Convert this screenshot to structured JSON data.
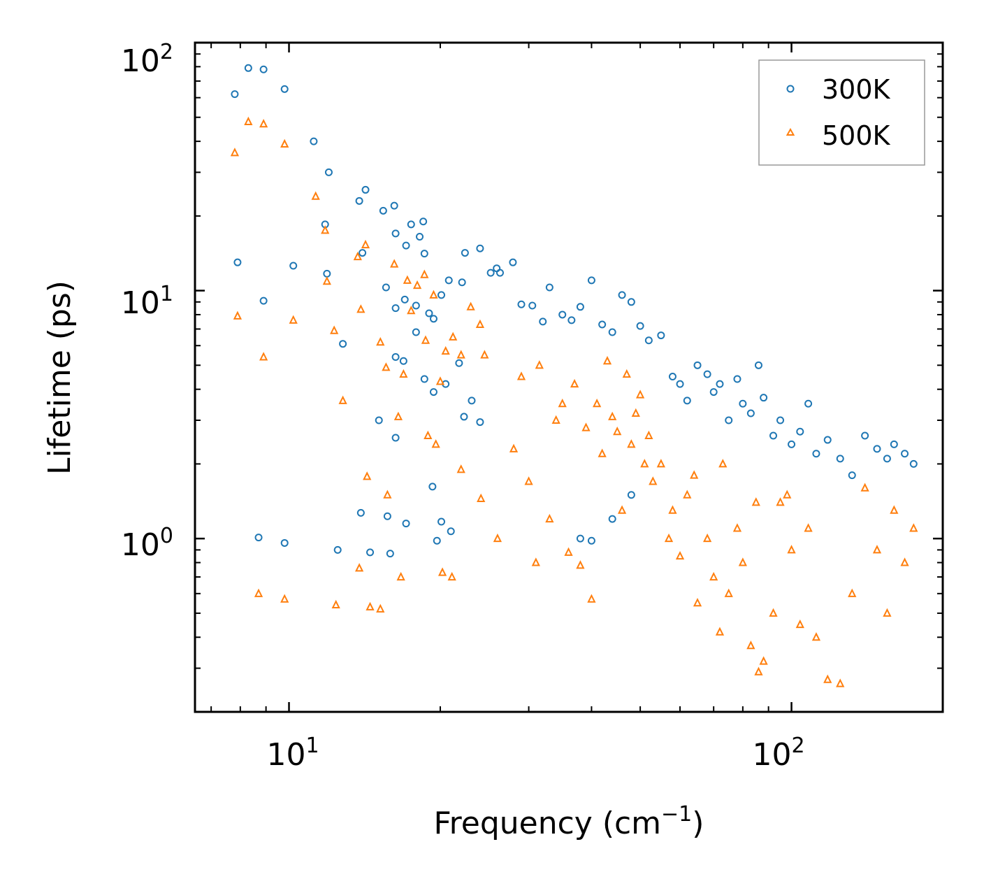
{
  "chart_data": {
    "type": "scatter",
    "xscale": "log",
    "yscale": "log",
    "xlabel": "Frequency (cm",
    "xlabel_sup": "−1",
    "xlabel_end": ")",
    "ylabel": "Lifetime (ps)",
    "xlim": [
      6.5,
      200
    ],
    "ylim": [
      0.2,
      100
    ],
    "x_ticks": [
      {
        "value": 10,
        "base": "10",
        "exp": "1"
      },
      {
        "value": 100,
        "base": "10",
        "exp": "2"
      }
    ],
    "y_ticks": [
      {
        "value": 1,
        "base": "10",
        "exp": "0"
      },
      {
        "value": 10,
        "base": "10",
        "exp": "1"
      },
      {
        "value": 100,
        "base": "10",
        "exp": "2"
      }
    ],
    "legend": {
      "position": "top-right"
    },
    "series": [
      {
        "name": "300K",
        "marker": "circle",
        "color": "#1f77b4",
        "points": [
          [
            7.8,
            62
          ],
          [
            8.3,
            79
          ],
          [
            8.9,
            78
          ],
          [
            9.8,
            65
          ],
          [
            11.2,
            40
          ],
          [
            12.0,
            30
          ],
          [
            11.8,
            18.5
          ],
          [
            7.9,
            13
          ],
          [
            8.9,
            9.1
          ],
          [
            10.2,
            12.6
          ],
          [
            11.9,
            11.7
          ],
          [
            12.8,
            6.1
          ],
          [
            13.8,
            23
          ],
          [
            14.2,
            25.5
          ],
          [
            14.0,
            14.2
          ],
          [
            15.4,
            21
          ],
          [
            16.2,
            22
          ],
          [
            16.3,
            17
          ],
          [
            17.5,
            18.5
          ],
          [
            18.5,
            19
          ],
          [
            18.2,
            16.5
          ],
          [
            17.1,
            15.2
          ],
          [
            18.6,
            14.1
          ],
          [
            15.6,
            10.3
          ],
          [
            16.3,
            8.5
          ],
          [
            17.0,
            9.2
          ],
          [
            17.9,
            8.7
          ],
          [
            19.0,
            8.1
          ],
          [
            19.4,
            7.7
          ],
          [
            20.1,
            9.6
          ],
          [
            20.8,
            11
          ],
          [
            22.1,
            10.8
          ],
          [
            22.4,
            14.2
          ],
          [
            24.0,
            14.8
          ],
          [
            25.2,
            11.8
          ],
          [
            25.9,
            12.3
          ],
          [
            26.3,
            11.8
          ],
          [
            27.9,
            13.0
          ],
          [
            16.3,
            5.4
          ],
          [
            16.9,
            5.2
          ],
          [
            17.9,
            6.8
          ],
          [
            18.6,
            4.4
          ],
          [
            19.4,
            3.9
          ],
          [
            20.5,
            4.2
          ],
          [
            21.8,
            5.1
          ],
          [
            23.1,
            3.6
          ],
          [
            24.0,
            2.95
          ],
          [
            22.3,
            3.1
          ],
          [
            15.1,
            3.0
          ],
          [
            16.3,
            2.55
          ],
          [
            19.3,
            1.62
          ],
          [
            8.7,
            1.01
          ],
          [
            9.8,
            0.96
          ],
          [
            12.5,
            0.9
          ],
          [
            13.9,
            1.27
          ],
          [
            14.5,
            0.88
          ],
          [
            15.7,
            1.23
          ],
          [
            15.9,
            0.87
          ],
          [
            17.1,
            1.15
          ],
          [
            20.1,
            1.17
          ],
          [
            21.0,
            1.07
          ],
          [
            19.7,
            0.98
          ],
          [
            29.0,
            8.8
          ],
          [
            30.5,
            8.7
          ],
          [
            32.0,
            7.5
          ],
          [
            33.0,
            10.3
          ],
          [
            35.0,
            8.0
          ],
          [
            36.5,
            7.6
          ],
          [
            38.0,
            8.6
          ],
          [
            40.0,
            11.0
          ],
          [
            42.0,
            7.3
          ],
          [
            44.0,
            6.8
          ],
          [
            46.0,
            9.6
          ],
          [
            48.0,
            9.0
          ],
          [
            50.0,
            7.2
          ],
          [
            52.0,
            6.3
          ],
          [
            55.0,
            6.6
          ],
          [
            58.0,
            4.5
          ],
          [
            60.0,
            4.2
          ],
          [
            62.0,
            3.6
          ],
          [
            65.0,
            5.0
          ],
          [
            68.0,
            4.6
          ],
          [
            70.0,
            3.9
          ],
          [
            72.0,
            4.2
          ],
          [
            75.0,
            3.0
          ],
          [
            78.0,
            4.4
          ],
          [
            80.0,
            3.5
          ],
          [
            83.0,
            3.2
          ],
          [
            86.0,
            5.0
          ],
          [
            88.0,
            3.7
          ],
          [
            92.0,
            2.6
          ],
          [
            95.0,
            3.0
          ],
          [
            100.0,
            2.4
          ],
          [
            104.0,
            2.7
          ],
          [
            108.0,
            3.5
          ],
          [
            112.0,
            2.2
          ],
          [
            118.0,
            2.5
          ],
          [
            125.0,
            2.1
          ],
          [
            132.0,
            1.8
          ],
          [
            140.0,
            2.6
          ],
          [
            148.0,
            2.3
          ],
          [
            155.0,
            2.1
          ],
          [
            160.0,
            2.4
          ],
          [
            168.0,
            2.2
          ],
          [
            175.0,
            2.0
          ],
          [
            38.0,
            1.0
          ],
          [
            40.0,
            0.98
          ],
          [
            44.0,
            1.2
          ],
          [
            48.0,
            1.5
          ]
        ]
      },
      {
        "name": "500K",
        "marker": "triangle",
        "color": "#ff7f0e",
        "points": [
          [
            7.8,
            36
          ],
          [
            8.3,
            48
          ],
          [
            8.9,
            47
          ],
          [
            9.8,
            39
          ],
          [
            11.3,
            24
          ],
          [
            11.8,
            17.5
          ],
          [
            7.9,
            7.9
          ],
          [
            8.9,
            5.4
          ],
          [
            10.2,
            7.6
          ],
          [
            11.9,
            10.9
          ],
          [
            12.3,
            6.9
          ],
          [
            12.8,
            3.6
          ],
          [
            13.7,
            13.7
          ],
          [
            14.2,
            15.3
          ],
          [
            13.9,
            8.4
          ],
          [
            14.3,
            1.78
          ],
          [
            15.2,
            6.2
          ],
          [
            15.6,
            4.9
          ],
          [
            16.2,
            12.8
          ],
          [
            16.5,
            3.1
          ],
          [
            16.9,
            4.6
          ],
          [
            17.2,
            11.0
          ],
          [
            17.5,
            8.3
          ],
          [
            18.0,
            10.5
          ],
          [
            18.6,
            11.6
          ],
          [
            18.7,
            6.3
          ],
          [
            19.4,
            9.6
          ],
          [
            20.0,
            4.3
          ],
          [
            20.5,
            5.7
          ],
          [
            21.2,
            6.5
          ],
          [
            22.0,
            5.5
          ],
          [
            23.0,
            8.6
          ],
          [
            24.0,
            7.3
          ],
          [
            24.5,
            5.5
          ],
          [
            15.7,
            1.5
          ],
          [
            16.7,
            0.7
          ],
          [
            18.9,
            2.6
          ],
          [
            19.6,
            2.4
          ],
          [
            20.2,
            0.73
          ],
          [
            21.1,
            0.7
          ],
          [
            8.7,
            0.6
          ],
          [
            9.8,
            0.57
          ],
          [
            12.4,
            0.54
          ],
          [
            13.8,
            0.76
          ],
          [
            14.5,
            0.53
          ],
          [
            15.2,
            0.52
          ],
          [
            22.0,
            1.9
          ],
          [
            24.1,
            1.45
          ],
          [
            26.0,
            1.0
          ],
          [
            28.0,
            2.3
          ],
          [
            30.0,
            1.7
          ],
          [
            31.0,
            0.8
          ],
          [
            33.0,
            1.2
          ],
          [
            35.0,
            3.5
          ],
          [
            36.0,
            0.88
          ],
          [
            38.0,
            0.78
          ],
          [
            40.0,
            0.57
          ],
          [
            42.0,
            2.2
          ],
          [
            44.0,
            3.1
          ],
          [
            46.0,
            1.3
          ],
          [
            48.0,
            2.4
          ],
          [
            50.0,
            3.8
          ],
          [
            52.0,
            2.6
          ],
          [
            55.0,
            2.0
          ],
          [
            58.0,
            1.3
          ],
          [
            60.0,
            0.85
          ],
          [
            62.0,
            1.5
          ],
          [
            65.0,
            0.55
          ],
          [
            68.0,
            1.0
          ],
          [
            70.0,
            0.7
          ],
          [
            72.0,
            0.42
          ],
          [
            75.0,
            0.6
          ],
          [
            78.0,
            1.1
          ],
          [
            80.0,
            0.8
          ],
          [
            83.0,
            0.37
          ],
          [
            86.0,
            0.29
          ],
          [
            88.0,
            0.32
          ],
          [
            92.0,
            0.5
          ],
          [
            95.0,
            1.4
          ],
          [
            100.0,
            0.9
          ],
          [
            104.0,
            0.45
          ],
          [
            108.0,
            1.1
          ],
          [
            112.0,
            0.4
          ],
          [
            118.0,
            0.27
          ],
          [
            125.0,
            0.26
          ],
          [
            132.0,
            0.6
          ],
          [
            140.0,
            1.6
          ],
          [
            148.0,
            0.9
          ],
          [
            155.0,
            0.5
          ],
          [
            160.0,
            1.3
          ],
          [
            168.0,
            0.8
          ],
          [
            175.0,
            1.1
          ],
          [
            29.0,
            4.5
          ],
          [
            31.5,
            5.0
          ],
          [
            34.0,
            3.0
          ],
          [
            37.0,
            4.2
          ],
          [
            39.0,
            2.8
          ],
          [
            41.0,
            3.5
          ],
          [
            43.0,
            5.2
          ],
          [
            45.0,
            2.7
          ],
          [
            47.0,
            4.6
          ],
          [
            49.0,
            3.2
          ],
          [
            51.0,
            2.0
          ],
          [
            53.0,
            1.7
          ],
          [
            57.0,
            1.0
          ],
          [
            64.0,
            1.8
          ],
          [
            73.0,
            2.0
          ],
          [
            85.0,
            1.4
          ],
          [
            98.0,
            1.5
          ]
        ]
      }
    ]
  }
}
